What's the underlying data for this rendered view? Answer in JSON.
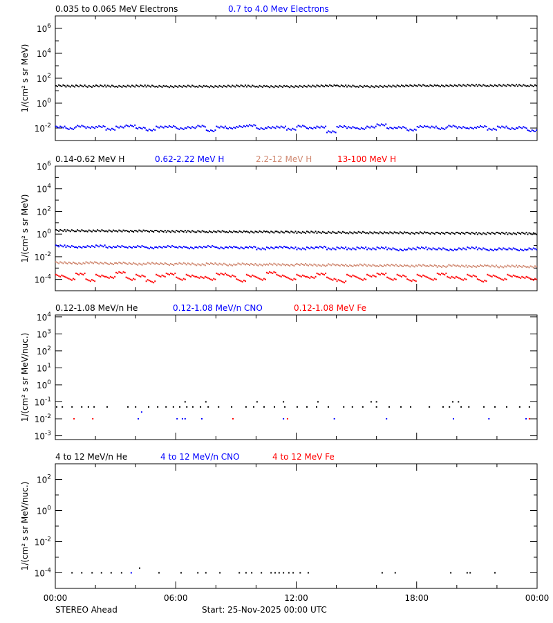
{
  "footer": {
    "spacecraft": "STEREO Ahead",
    "start": "Start: 25-Nov-2025 00:00 UTC"
  },
  "x_ticks": [
    "00:00",
    "06:00",
    "12:00",
    "18:00",
    "00:00"
  ],
  "colors": {
    "black": "#000000",
    "blue": "#0000ff",
    "brown": "#d08870",
    "red": "#ff0000"
  },
  "chart_data": [
    {
      "type": "scatter",
      "ylabel": "1/(cm² s sr MeV)",
      "yscale": "log",
      "ylim": [
        0.001,
        10000000
      ],
      "y_tick_labels": [
        "10^-2",
        "10^0",
        "10^2",
        "10^4",
        "10^6"
      ],
      "x": [
        "00:15",
        "00:45",
        "01:15",
        "01:45",
        "02:15",
        "02:45",
        "03:15",
        "03:45",
        "04:15",
        "04:45",
        "05:15",
        "05:45",
        "06:15",
        "06:45",
        "07:15",
        "07:45",
        "08:15",
        "08:45",
        "09:15",
        "09:45",
        "10:15",
        "10:45",
        "11:15",
        "11:45",
        "12:15",
        "12:45",
        "13:15",
        "13:45",
        "14:15",
        "14:45",
        "15:15",
        "15:45",
        "16:15",
        "16:45",
        "17:15",
        "17:45",
        "18:15",
        "18:45",
        "19:15",
        "19:45",
        "20:15",
        "20:45",
        "21:15",
        "21:45",
        "22:15",
        "22:45",
        "23:15",
        "23:45"
      ],
      "series": [
        {
          "name": "0.035 to 0.065 MeV Electrons",
          "color": "#000000",
          "values": [
            25,
            23,
            24,
            22,
            24,
            23,
            22,
            23,
            24,
            23,
            22,
            21,
            22,
            23,
            22,
            21,
            22,
            23,
            24,
            23,
            22,
            21,
            22,
            21,
            22,
            23,
            24,
            25,
            24,
            23,
            22,
            21,
            22,
            23,
            24,
            25,
            26,
            25,
            24,
            25,
            26,
            27,
            26,
            25,
            26,
            27,
            26,
            25
          ]
        },
        {
          "name": "0.7 to 4.0 Mev Electrons",
          "color": "#0000ff",
          "values": [
            0.012,
            0.009,
            0.014,
            0.011,
            0.013,
            0.008,
            0.012,
            0.015,
            0.01,
            0.007,
            0.012,
            0.013,
            0.009,
            0.011,
            0.014,
            0.006,
            0.012,
            0.01,
            0.013,
            0.016,
            0.009,
            0.011,
            0.012,
            0.008,
            0.014,
            0.01,
            0.012,
            0.005,
            0.013,
            0.011,
            0.009,
            0.012,
            0.018,
            0.01,
            0.011,
            0.007,
            0.013,
            0.012,
            0.009,
            0.014,
            0.011,
            0.01,
            0.013,
            0.008,
            0.012,
            0.009,
            0.011,
            0.006
          ]
        }
      ]
    },
    {
      "type": "scatter",
      "ylabel": "1/(cm² s sr MeV)",
      "yscale": "log",
      "ylim": [
        1e-05,
        1000000
      ],
      "y_tick_labels": [
        "10^-4",
        "10^-2",
        "10^0",
        "10^2",
        "10^4",
        "10^6"
      ],
      "x": [
        "00:15",
        "00:45",
        "01:15",
        "01:45",
        "02:15",
        "02:45",
        "03:15",
        "03:45",
        "04:15",
        "04:45",
        "05:15",
        "05:45",
        "06:15",
        "06:45",
        "07:15",
        "07:45",
        "08:15",
        "08:45",
        "09:15",
        "09:45",
        "10:15",
        "10:45",
        "11:15",
        "11:45",
        "12:15",
        "12:45",
        "13:15",
        "13:45",
        "14:15",
        "14:45",
        "15:15",
        "15:45",
        "16:15",
        "16:45",
        "17:15",
        "17:45",
        "18:15",
        "18:45",
        "19:15",
        "19:45",
        "20:15",
        "20:45",
        "21:15",
        "21:45",
        "22:15",
        "22:45",
        "23:15",
        "23:45"
      ],
      "series": [
        {
          "name": "0.14-0.62 MeV H",
          "color": "#000000",
          "values": [
            2.1,
            2.0,
            2.0,
            1.9,
            2.0,
            1.9,
            1.9,
            1.8,
            1.9,
            1.8,
            1.8,
            1.7,
            1.8,
            1.7,
            1.7,
            1.6,
            1.7,
            1.6,
            1.6,
            1.5,
            1.6,
            1.5,
            1.5,
            1.5,
            1.4,
            1.5,
            1.4,
            1.4,
            1.4,
            1.3,
            1.4,
            1.3,
            1.3,
            1.3,
            1.3,
            1.2,
            1.3,
            1.2,
            1.2,
            1.2,
            1.2,
            1.2,
            1.1,
            1.2,
            1.2,
            1.1,
            1.2,
            1.1
          ]
        },
        {
          "name": "0.62-2.22 MeV H",
          "color": "#0000ff",
          "values": [
            0.09,
            0.08,
            0.07,
            0.08,
            0.09,
            0.07,
            0.08,
            0.07,
            0.08,
            0.06,
            0.07,
            0.08,
            0.07,
            0.06,
            0.07,
            0.08,
            0.06,
            0.07,
            0.06,
            0.07,
            0.05,
            0.06,
            0.07,
            0.06,
            0.05,
            0.06,
            0.07,
            0.05,
            0.06,
            0.05,
            0.06,
            0.05,
            0.06,
            0.05,
            0.04,
            0.05,
            0.06,
            0.05,
            0.05,
            0.04,
            0.05,
            0.06,
            0.05,
            0.04,
            0.05,
            0.05,
            0.04,
            0.05
          ]
        },
        {
          "name": "2.2-12 MeV H",
          "color": "#d08870",
          "values": [
            0.003,
            0.0028,
            0.0025,
            0.003,
            0.0027,
            0.0024,
            0.0028,
            0.0025,
            0.0022,
            0.0026,
            0.0024,
            0.0021,
            0.0025,
            0.0023,
            0.002,
            0.0024,
            0.0022,
            0.0019,
            0.0023,
            0.0021,
            0.0019,
            0.0022,
            0.002,
            0.0018,
            0.0021,
            0.0019,
            0.0017,
            0.002,
            0.0018,
            0.0016,
            0.0019,
            0.0017,
            0.0016,
            0.0018,
            0.0016,
            0.0015,
            0.0017,
            0.0016,
            0.0014,
            0.0017,
            0.0015,
            0.0014,
            0.0016,
            0.0015,
            0.0013,
            0.0015,
            0.0014,
            0.0013
          ]
        },
        {
          "name": "13-100 MeV H",
          "color": "#ff0000",
          "values": [
            0.0002,
            0.0001,
            0.0003,
            8e-05,
            0.0002,
            0.00015,
            0.0004,
            0.0001,
            0.0002,
            6e-05,
            0.0002,
            0.0003,
            0.0001,
            0.0002,
            0.00015,
            0.0001,
            0.0003,
            0.0002,
            7e-05,
            0.0002,
            0.0001,
            0.0004,
            0.0002,
            0.0001,
            0.0002,
            0.00015,
            0.0003,
            0.0001,
            6e-05,
            0.0002,
            0.0001,
            0.0002,
            0.0003,
            0.0001,
            0.0002,
            8e-05,
            0.0002,
            0.0001,
            0.0003,
            0.00015,
            0.0001,
            0.0002,
            7e-05,
            0.0002,
            0.0001,
            0.0002,
            0.00015,
            0.0001
          ]
        }
      ]
    },
    {
      "type": "scatter",
      "ylabel": "1/(cm² s sr MeV/nuc.)",
      "yscale": "log",
      "ylim": [
        0.0006,
        13000
      ],
      "y_tick_labels": [
        "10^-3",
        "10^-2",
        "10^-1",
        "10^0",
        "10^1",
        "10^2",
        "10^3",
        "10^4"
      ],
      "series": [
        {
          "name": "0.12-1.08 MeV/n He",
          "color": "#000000",
          "points": [
            [
              "00:04",
              0.05
            ],
            [
              "00:21",
              0.05
            ],
            [
              "00:50",
              0.05
            ],
            [
              "01:19",
              0.05
            ],
            [
              "01:39",
              0.05
            ],
            [
              "01:56",
              0.05
            ],
            [
              "02:35",
              0.05
            ],
            [
              "03:37",
              0.05
            ],
            [
              "04:00",
              0.05
            ],
            [
              "04:39",
              0.05
            ],
            [
              "05:06",
              0.05
            ],
            [
              "05:31",
              0.05
            ],
            [
              "05:53",
              0.05
            ],
            [
              "06:12",
              0.05
            ],
            [
              "06:33",
              0.05
            ],
            [
              "06:51",
              0.05
            ],
            [
              "07:14",
              0.05
            ],
            [
              "07:37",
              0.05
            ],
            [
              "08:08",
              0.05
            ],
            [
              "08:47",
              0.05
            ],
            [
              "09:30",
              0.05
            ],
            [
              "09:53",
              0.05
            ],
            [
              "10:24",
              0.05
            ],
            [
              "10:55",
              0.05
            ],
            [
              "11:26",
              0.05
            ],
            [
              "12:03",
              0.05
            ],
            [
              "12:32",
              0.05
            ],
            [
              "13:01",
              0.05
            ],
            [
              "13:36",
              0.05
            ],
            [
              "14:22",
              0.05
            ],
            [
              "14:48",
              0.05
            ],
            [
              "15:19",
              0.05
            ],
            [
              "16:00",
              0.05
            ],
            [
              "16:38",
              0.05
            ],
            [
              "17:13",
              0.05
            ],
            [
              "17:42",
              0.05
            ],
            [
              "18:38",
              0.05
            ],
            [
              "19:19",
              0.05
            ],
            [
              "19:38",
              0.05
            ],
            [
              "20:13",
              0.05
            ],
            [
              "20:36",
              0.05
            ],
            [
              "21:21",
              0.05
            ],
            [
              "21:54",
              0.05
            ],
            [
              "22:29",
              0.05
            ],
            [
              "23:08",
              0.05
            ],
            [
              "23:37",
              0.05
            ],
            [
              "06:28",
              0.1
            ],
            [
              "07:30",
              0.1
            ],
            [
              "10:03",
              0.1
            ],
            [
              "11:22",
              0.1
            ],
            [
              "13:05",
              0.1
            ],
            [
              "15:44",
              0.1
            ],
            [
              "16:00",
              0.1
            ],
            [
              "19:48",
              0.1
            ],
            [
              "20:05",
              0.1
            ]
          ]
        },
        {
          "name": "0.12-1.08 MeV/n CNO",
          "color": "#0000ff",
          "points": [
            [
              "04:08",
              0.01
            ],
            [
              "04:18",
              0.025
            ],
            [
              "06:04",
              0.01
            ],
            [
              "06:20",
              0.01
            ],
            [
              "06:28",
              0.01
            ],
            [
              "07:18",
              0.01
            ],
            [
              "11:22",
              0.01
            ],
            [
              "13:54",
              0.01
            ],
            [
              "16:30",
              0.01
            ],
            [
              "19:50",
              0.01
            ],
            [
              "21:36",
              0.01
            ],
            [
              "23:27",
              0.01
            ]
          ]
        },
        {
          "name": "0.12-1.08 MeV Fe",
          "color": "#ff0000",
          "points": [
            [
              "00:56",
              0.01
            ],
            [
              "01:52",
              0.01
            ],
            [
              "08:51",
              0.01
            ],
            [
              "11:34",
              0.01
            ],
            [
              "23:37",
              0.01
            ]
          ]
        }
      ]
    },
    {
      "type": "scatter",
      "ylabel": "1/(cm² s sr MeV/nuc.)",
      "yscale": "log",
      "ylim": [
        1e-05,
        1000
      ],
      "y_tick_labels": [
        "10^-4",
        "10^-2",
        "10^0",
        "10^2"
      ],
      "series": [
        {
          "name": "4 to 12 MeV/n He",
          "color": "#000000",
          "points": [
            [
              "00:50",
              0.0001
            ],
            [
              "01:19",
              0.0001
            ],
            [
              "01:50",
              0.0001
            ],
            [
              "02:18",
              0.0001
            ],
            [
              "02:47",
              0.0001
            ],
            [
              "03:18",
              0.0001
            ],
            [
              "04:12",
              0.0002
            ],
            [
              "05:10",
              0.0001
            ],
            [
              "06:16",
              0.0001
            ],
            [
              "07:06",
              0.0001
            ],
            [
              "07:30",
              0.0001
            ],
            [
              "08:12",
              0.0001
            ],
            [
              "09:10",
              0.0001
            ],
            [
              "09:30",
              0.0001
            ],
            [
              "09:47",
              0.0001
            ],
            [
              "10:16",
              0.0001
            ],
            [
              "10:45",
              0.0001
            ],
            [
              "10:57",
              0.0001
            ],
            [
              "11:09",
              0.0001
            ],
            [
              "11:22",
              0.0001
            ],
            [
              "11:38",
              0.0001
            ],
            [
              "11:51",
              0.0001
            ],
            [
              "12:12",
              0.0001
            ],
            [
              "12:36",
              0.0001
            ],
            [
              "16:17",
              0.0001
            ],
            [
              "16:56",
              0.0001
            ],
            [
              "19:42",
              0.0001
            ],
            [
              "20:31",
              0.0001
            ],
            [
              "20:40",
              0.0001
            ],
            [
              "21:54",
              0.0001
            ]
          ]
        },
        {
          "name": "4 to 12 MeV/n CNO",
          "color": "#0000ff",
          "points": [
            [
              "03:47",
              0.0001
            ]
          ]
        },
        {
          "name": "4 to 12 MeV Fe",
          "color": "#ff0000",
          "points": []
        }
      ]
    }
  ]
}
